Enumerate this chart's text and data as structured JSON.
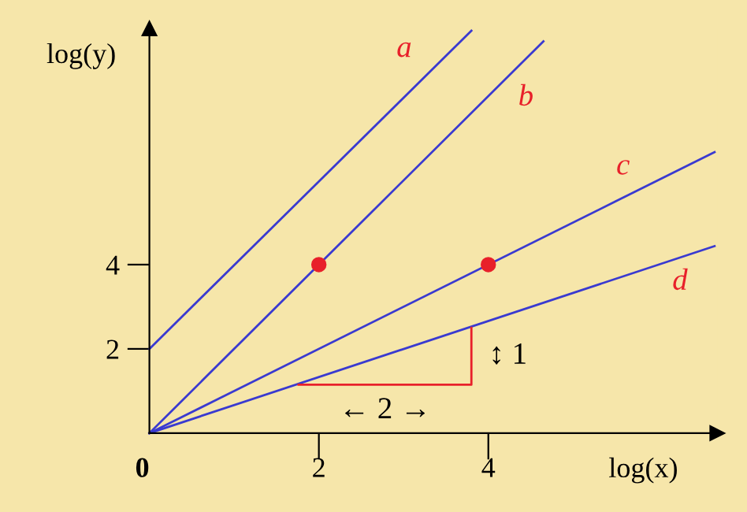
{
  "chart_data": {
    "type": "line",
    "xlabel": "log(x)",
    "ylabel": "log(y)",
    "xlim": [
      0,
      6.7
    ],
    "ylim": [
      0,
      9.6
    ],
    "xticks": [
      0,
      2,
      4
    ],
    "yticks": [
      2,
      4
    ],
    "grid": false,
    "legend": false,
    "line_style": "solid",
    "series": [
      {
        "name": "a",
        "color": "#3a3ad0",
        "x": [
          0,
          3.8
        ],
        "values": [
          2,
          9.55
        ]
      },
      {
        "name": "b",
        "color": "#3a3ad0",
        "x": [
          0,
          4.65
        ],
        "values": [
          0,
          9.3
        ]
      },
      {
        "name": "c",
        "color": "#3a3ad0",
        "x": [
          0,
          6.67
        ],
        "values": [
          0,
          6.67
        ]
      },
      {
        "name": "d",
        "color": "#3a3ad0",
        "x": [
          0,
          6.67
        ],
        "values": [
          0,
          4.44
        ]
      },
      {
        "type": "line",
        "color": "#e8202a",
        "x": [
          1.76,
          3.8,
          3.8
        ],
        "values": [
          1.15,
          1.15,
          2.5
        ]
      },
      {
        "type": "scatter",
        "marker": "circle",
        "color": "#e8202a",
        "x": [
          2,
          4
        ],
        "values": [
          4,
          4
        ]
      }
    ],
    "annotations": [
      "↕ 1",
      "← 2 →"
    ]
  }
}
